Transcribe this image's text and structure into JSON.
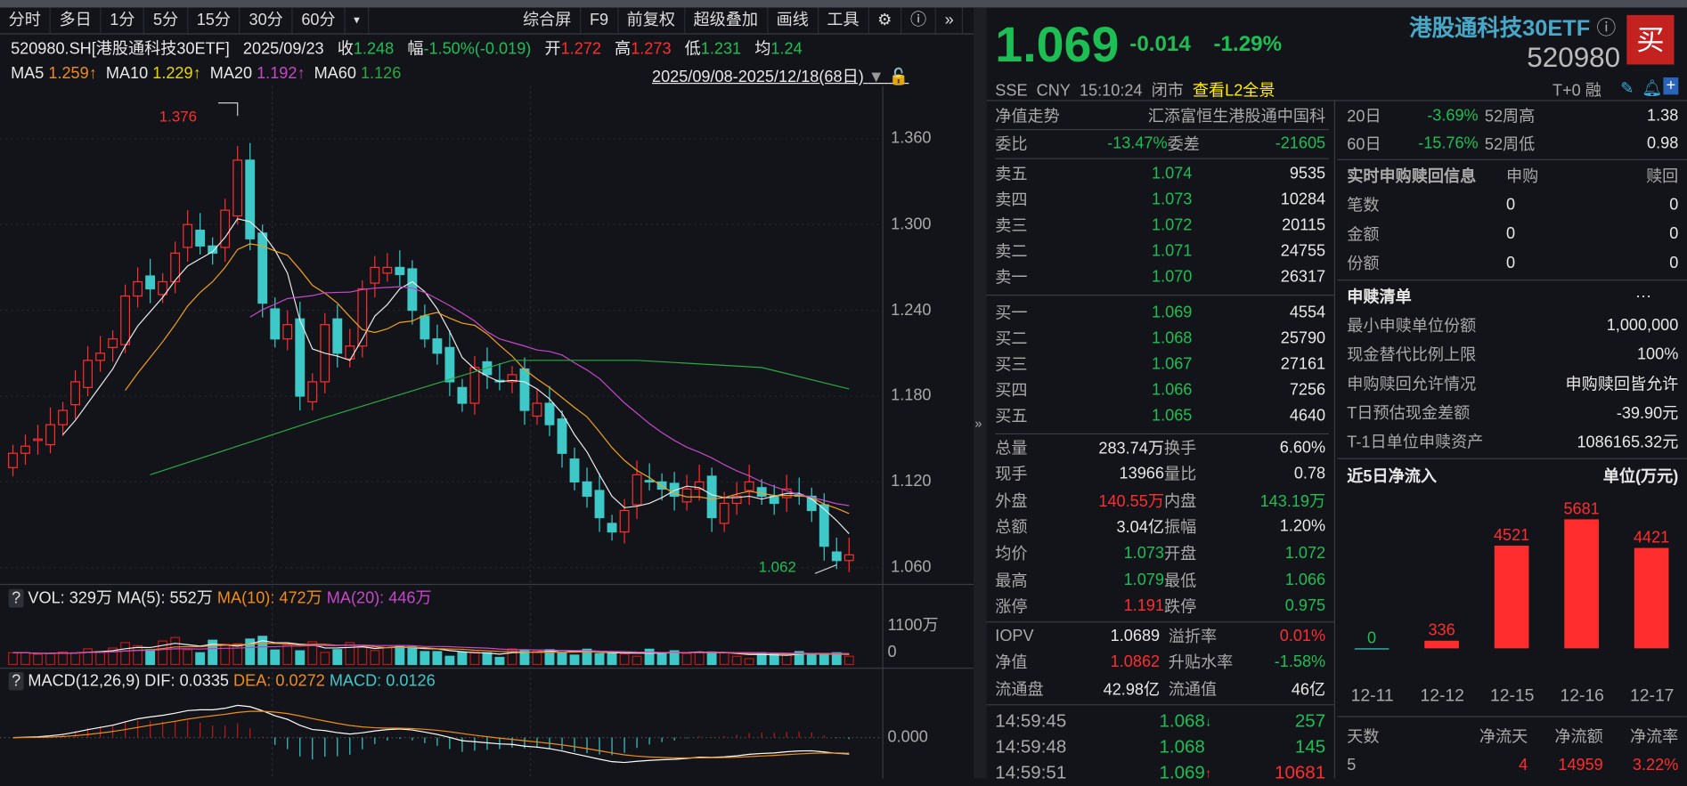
{
  "toolbar": {
    "periods": [
      "分时",
      "多日",
      "1分",
      "5分",
      "15分",
      "30分",
      "60分",
      "▾"
    ],
    "tools": [
      "综合屏",
      "F9",
      "前复权",
      "超级叠加",
      "画线",
      "工具"
    ],
    "gear_icon": "gear-icon",
    "help_icon": "help-icon",
    "more": "»"
  },
  "info": {
    "code": "520980.SH[港股通科技30ETF]",
    "date": "2025/09/23",
    "close_label": "收",
    "close": "1.248",
    "amp_label": "幅",
    "amp": "-1.50%(-0.019)",
    "open_label": "开",
    "open": "1.272",
    "high_label": "高",
    "high": "1.273",
    "low_label": "低",
    "low": "1.231",
    "avg_label": "均",
    "avg": "1.24"
  },
  "ma": {
    "ma5_label": "MA5",
    "ma5": "1.259↑",
    "ma10_label": "MA10",
    "ma10": "1.229↑",
    "ma20_label": "MA20",
    "ma20": "1.192↑",
    "ma60_label": "MA60",
    "ma60": "1.126",
    "range": "2025/09/08-2025/12/18(68日)"
  },
  "vol_legend": {
    "q": "?",
    "vol": "VOL: 329万",
    "ma5": "MA(5): 552万",
    "ma10": "MA(10): 472万",
    "ma20": "MA(20): 446万",
    "axis_top": "1100万",
    "axis_zero": "0"
  },
  "macd_legend": {
    "q": "?",
    "title": "MACD(12,26,9)",
    "dif": "DIF: 0.0335",
    "dea": "DEA: 0.0272",
    "macd": "MACD: 0.0126",
    "axis_zero": "0.000"
  },
  "splitter": "»",
  "quote": {
    "price": "1.069",
    "change": "-0.014",
    "pct": "-1.29%",
    "name": "港股通科技30ETF",
    "code": "520980",
    "buy": "买",
    "exchange": "SSE",
    "currency": "CNY",
    "time": "15:10:24",
    "status": "闭市",
    "l2": "查看L2全景",
    "t0": "T+0",
    "rong": "融"
  },
  "book": {
    "nav_label": "净值走势",
    "nav_name": "汇添富恒生港股通中国科",
    "weibi_label": "委比",
    "weibi": "-13.47%",
    "weicha_label": "委差",
    "weicha": "-21605",
    "asks": [
      {
        "label": "卖五",
        "price": "1.074",
        "vol": "9535"
      },
      {
        "label": "卖四",
        "price": "1.073",
        "vol": "10284"
      },
      {
        "label": "卖三",
        "price": "1.072",
        "vol": "20115"
      },
      {
        "label": "卖二",
        "price": "1.071",
        "vol": "24755"
      },
      {
        "label": "卖一",
        "price": "1.070",
        "vol": "26317"
      }
    ],
    "bids": [
      {
        "label": "买一",
        "price": "1.069",
        "vol": "4554"
      },
      {
        "label": "买二",
        "price": "1.068",
        "vol": "25790"
      },
      {
        "label": "买三",
        "price": "1.067",
        "vol": "27161"
      },
      {
        "label": "买四",
        "price": "1.066",
        "vol": "7256"
      },
      {
        "label": "买五",
        "price": "1.065",
        "vol": "4640"
      }
    ]
  },
  "stats": [
    {
      "l1": "总量",
      "v1": "283.74万",
      "c1": "w",
      "l2": "换手",
      "v2": "6.60%",
      "c2": "w"
    },
    {
      "l1": "现手",
      "v1": "13966",
      "c1": "w",
      "l2": "量比",
      "v2": "0.78",
      "c2": "w"
    },
    {
      "l1": "外盘",
      "v1": "140.55万",
      "c1": "r",
      "l2": "内盘",
      "v2": "143.19万",
      "c2": "g"
    },
    {
      "l1": "总额",
      "v1": "3.04亿",
      "c1": "w",
      "l2": "振幅",
      "v2": "1.20%",
      "c2": "w"
    },
    {
      "l1": "均价",
      "v1": "1.073",
      "c1": "g",
      "l2": "开盘",
      "v2": "1.072",
      "c2": "g"
    },
    {
      "l1": "最高",
      "v1": "1.079",
      "c1": "g",
      "l2": "最低",
      "v2": "1.066",
      "c2": "g"
    },
    {
      "l1": "涨停",
      "v1": "1.191",
      "c1": "r",
      "l2": "跌停",
      "v2": "0.975",
      "c2": "g"
    }
  ],
  "etf_stats": [
    {
      "l1": "IOPV",
      "v1": "1.0689",
      "c1": "w",
      "l2": "溢折率",
      "v2": "0.01%",
      "c2": "r"
    },
    {
      "l1": "净值",
      "v1": "1.0862",
      "c1": "r",
      "l2": "升贴水率",
      "v2": "-1.58%",
      "c2": "g"
    },
    {
      "l1": "流通盘",
      "v1": "42.98亿",
      "c1": "w",
      "l2": "流通值",
      "v2": "46亿",
      "c2": "w"
    }
  ],
  "ticks": [
    {
      "time": "14:59:45",
      "price": "1.068",
      "dir": "↓",
      "vol": "257",
      "vc": "g"
    },
    {
      "time": "14:59:48",
      "price": "1.068",
      "dir": "",
      "vol": "145",
      "vc": "g"
    },
    {
      "time": "14:59:51",
      "price": "1.069",
      "dir": "↑",
      "vol": "10681",
      "vc": "r"
    }
  ],
  "perf": [
    {
      "l1": "20日",
      "v1": "-3.69%",
      "l2": "52周高",
      "v2": "1.38"
    },
    {
      "l1": "60日",
      "v1": "-15.76%",
      "l2": "52周低",
      "v2": "0.98"
    }
  ],
  "realtime": {
    "title": "实时申购赎回信息",
    "col1": "申购",
    "col2": "赎回",
    "rows": [
      {
        "label": "笔数",
        "a": "0",
        "b": "0"
      },
      {
        "label": "金额",
        "a": "0",
        "b": "0"
      },
      {
        "label": "份额",
        "a": "0",
        "b": "0"
      }
    ]
  },
  "list": {
    "title": "申赎清单",
    "more": "···",
    "rows": [
      {
        "label": "最小申赎单位份额",
        "value": "1,000,000"
      },
      {
        "label": "现金替代比例上限",
        "value": "100%"
      },
      {
        "label": "申购赎回允许情况",
        "value": "申购赎回皆允许"
      },
      {
        "label": "T日预估现金差额",
        "value": "-39.90元"
      },
      {
        "label": "T-1日单位申赎资产",
        "value": "1086165.32元"
      }
    ]
  },
  "netflow": {
    "title": "近5日净流入",
    "unit": "单位(万元)",
    "summary_headers": [
      "天数",
      "净流天",
      "净流额",
      "净流率"
    ],
    "summary": [
      "5",
      "4",
      "14959",
      "3.22%"
    ]
  },
  "colors": {
    "up": "#ff2d2d",
    "down": "#3ec8c8",
    "green": "#1dbf55",
    "ma5": "#e8e8e8",
    "ma10": "#f08c1a",
    "ma20": "#c548c8",
    "ma60": "#2aa844",
    "bg": "#131419"
  },
  "chart_data": [
    {
      "type": "candlestick",
      "title": "520980.SH 日K",
      "price_ticks": [
        "1.360",
        "1.300",
        "1.240",
        "1.180",
        "1.120",
        "1.060"
      ],
      "price_tick_values": [
        1.36,
        1.3,
        1.24,
        1.18,
        1.12,
        1.06
      ],
      "max_label": "1.376",
      "max_value": 1.376,
      "min_label": "1.062",
      "min_value": 1.062,
      "closes": [
        1.14,
        1.145,
        1.15,
        1.16,
        1.17,
        1.19,
        1.205,
        1.21,
        1.22,
        1.25,
        1.26,
        1.255,
        1.26,
        1.28,
        1.3,
        1.285,
        1.28,
        1.31,
        1.345,
        1.29,
        1.245,
        1.22,
        1.23,
        1.18,
        1.19,
        1.23,
        1.21,
        1.215,
        1.255,
        1.27,
        1.27,
        1.265,
        1.24,
        1.22,
        1.21,
        1.19,
        1.175,
        1.2,
        1.195,
        1.19,
        1.195,
        1.17,
        1.175,
        1.16,
        1.14,
        1.12,
        1.11,
        1.095,
        1.085,
        1.1,
        1.125,
        1.12,
        1.115,
        1.11,
        1.115,
        1.12,
        1.095,
        1.105,
        1.11,
        1.12,
        1.11,
        1.105,
        1.115,
        1.11,
        1.1,
        1.075,
        1.065,
        1.069
      ],
      "ma60_points": [
        [
          11,
          1.125
        ],
        [
          25,
          1.165
        ],
        [
          40,
          1.205
        ],
        [
          50,
          1.205
        ],
        [
          60,
          1.2
        ],
        [
          67,
          1.185
        ]
      ]
    },
    {
      "type": "bar",
      "title": "VOL",
      "unit": "万",
      "ylim": [
        0,
        1100
      ],
      "values": [
        300,
        300,
        260,
        280,
        320,
        300,
        400,
        330,
        420,
        560,
        480,
        380,
        600,
        690,
        380,
        300,
        620,
        520,
        530,
        650,
        720,
        370,
        500,
        350,
        580,
        310,
        380,
        560,
        440,
        360,
        430,
        460,
        450,
        330,
        330,
        210,
        310,
        320,
        300,
        180,
        400,
        370,
        350,
        380,
        300,
        240,
        390,
        280,
        300,
        270,
        210,
        390,
        290,
        350,
        280,
        300,
        320,
        300,
        210,
        150,
        300,
        270,
        250,
        330,
        250,
        270,
        300,
        210
      ]
    },
    {
      "type": "bar",
      "title": "近5日净流入",
      "unit": "万元",
      "categories": [
        "12-11",
        "12-12",
        "12-15",
        "12-16",
        "12-17"
      ],
      "values": [
        0,
        336,
        4521,
        5681,
        4421
      ],
      "labels": [
        "0",
        "336",
        "4521",
        "5681",
        "4421"
      ]
    }
  ]
}
